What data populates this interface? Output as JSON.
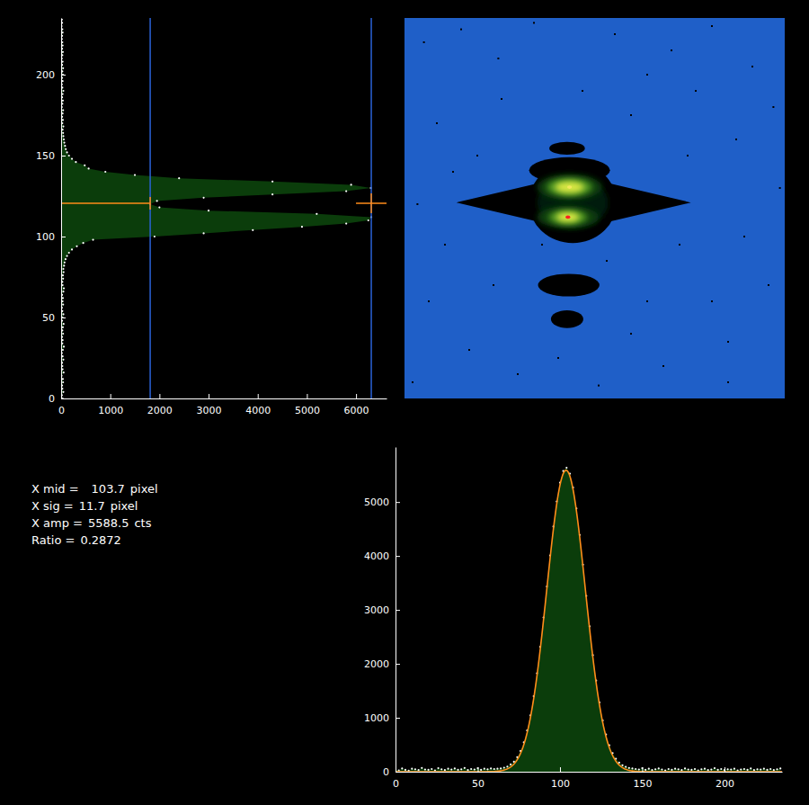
{
  "chart_data": [
    {
      "type": "area",
      "orientation": "horizontal",
      "color": "#0b3d0b",
      "marker": "dot",
      "y": [
        0,
        2,
        4,
        6,
        8,
        10,
        12,
        14,
        16,
        18,
        20,
        22,
        24,
        26,
        28,
        30,
        32,
        34,
        36,
        38,
        40,
        42,
        44,
        46,
        48,
        50,
        52,
        54,
        56,
        58,
        60,
        62,
        64,
        66,
        68,
        70,
        72,
        74,
        76,
        78,
        80,
        82,
        84,
        86,
        88,
        90,
        92,
        94,
        96,
        98,
        100,
        102,
        104,
        106,
        108,
        110,
        112,
        114,
        116,
        118,
        120,
        122,
        124,
        126,
        128,
        130,
        132,
        134,
        136,
        138,
        140,
        142,
        144,
        146,
        148,
        150,
        152,
        154,
        156,
        158,
        160,
        162,
        164,
        166,
        168,
        170,
        172,
        174,
        176,
        178,
        180,
        182,
        184,
        186,
        188,
        190,
        192,
        194,
        196,
        198,
        200,
        202,
        204,
        206,
        208,
        210,
        212,
        214,
        216,
        218,
        220,
        222,
        224,
        226,
        228,
        230,
        232,
        234
      ],
      "values": [
        30,
        15,
        45,
        25,
        20,
        40,
        35,
        10,
        50,
        30,
        25,
        20,
        45,
        30,
        15,
        35,
        55,
        25,
        30,
        20,
        40,
        25,
        35,
        50,
        20,
        30,
        45,
        25,
        15,
        40,
        30,
        35,
        20,
        45,
        55,
        30,
        25,
        40,
        35,
        50,
        45,
        60,
        70,
        90,
        120,
        160,
        220,
        320,
        450,
        650,
        1900,
        2900,
        3900,
        4900,
        5800,
        6250,
        6310,
        5200,
        3000,
        2000,
        1812,
        1950,
        2900,
        4300,
        5800,
        6300,
        5900,
        4300,
        2400,
        1500,
        900,
        560,
        480,
        300,
        220,
        160,
        120,
        95,
        80,
        65,
        55,
        45,
        40,
        30,
        45,
        25,
        35,
        20,
        30,
        40,
        15,
        25,
        35,
        20,
        30,
        45,
        25,
        15,
        30,
        20,
        35,
        25,
        40,
        20,
        30,
        15,
        25,
        35,
        20,
        30,
        25,
        15,
        20,
        30,
        25,
        10,
        20,
        15
      ],
      "xlim": [
        0,
        6620
      ],
      "xticks": [
        0,
        1000,
        2000,
        3000,
        4000,
        5000,
        6000
      ],
      "ylim": [
        0,
        235
      ],
      "yticks": [
        0,
        50,
        100,
        150,
        200
      ],
      "levels": {
        "values": [
          1812,
          6310
        ],
        "color": "#2a62d6"
      },
      "center": {
        "y": 120.5,
        "color": "#ff8c1a"
      }
    },
    {
      "type": "image",
      "tick_labels": false,
      "color": "#1f5fc8",
      "xlim": [
        0,
        235
      ],
      "ylim": [
        0,
        235
      ],
      "clim": [
        0,
        6310
      ],
      "regions": [
        {
          "shape": "ellipse",
          "x": 100.5,
          "y": 154.5,
          "rx": 11,
          "ry": 4,
          "level": 60
        },
        {
          "shape": "ellipse",
          "x": 102,
          "y": 141,
          "rx": 25,
          "ry": 8,
          "level": 60
        },
        {
          "shape": "diamond",
          "x": 104.5,
          "y": 121,
          "rx": 72.5,
          "ry": 17,
          "level": 60
        },
        {
          "shape": "ellipse",
          "x": 104,
          "y": 121,
          "rx": 27,
          "ry": 25,
          "level": 60
        },
        {
          "shape": "ellipse",
          "x": 101.5,
          "y": 70,
          "rx": 19,
          "ry": 7,
          "level": 60
        },
        {
          "shape": "ellipse",
          "x": 100.5,
          "y": 49,
          "rx": 10,
          "ry": 5.5,
          "level": 60
        },
        {
          "shape": "ellipse",
          "x": 104,
          "y": 121,
          "rx": 22,
          "ry": 16,
          "level": 350
        },
        {
          "shape": "ellipse",
          "x": 102,
          "y": 130.5,
          "rx": 20,
          "ry": 8,
          "level": 700
        },
        {
          "shape": "ellipse",
          "x": 101,
          "y": 112,
          "rx": 19,
          "ry": 7,
          "level": 700
        },
        {
          "shape": "ellipse",
          "x": 102,
          "y": 130.5,
          "rx": 14,
          "ry": 5.5,
          "level": 2500
        },
        {
          "shape": "ellipse",
          "x": 101,
          "y": 112,
          "rx": 12,
          "ry": 4.5,
          "level": 2500
        },
        {
          "shape": "ellipse",
          "x": 102,
          "y": 130.5,
          "rx": 9,
          "ry": 3.5,
          "level": 4500
        },
        {
          "shape": "ellipse",
          "x": 101,
          "y": 112,
          "rx": 7,
          "ry": 3,
          "level": 4500
        },
        {
          "shape": "ellipse",
          "x": 102,
          "y": 130.5,
          "rx": 1.5,
          "ry": 1,
          "level": 5800
        },
        {
          "shape": "ellipse",
          "x": 101,
          "y": 112,
          "rx": 1.5,
          "ry": 1,
          "level": 6310
        }
      ],
      "speckles": [
        [
          12,
          220
        ],
        [
          35,
          228
        ],
        [
          58,
          210
        ],
        [
          80,
          232
        ],
        [
          130,
          225
        ],
        [
          165,
          215
        ],
        [
          190,
          230
        ],
        [
          215,
          205
        ],
        [
          228,
          180
        ],
        [
          205,
          160
        ],
        [
          180,
          190
        ],
        [
          150,
          200
        ],
        [
          20,
          170
        ],
        [
          8,
          120
        ],
        [
          25,
          95
        ],
        [
          15,
          60
        ],
        [
          40,
          30
        ],
        [
          70,
          15
        ],
        [
          120,
          8
        ],
        [
          160,
          20
        ],
        [
          200,
          35
        ],
        [
          225,
          70
        ],
        [
          210,
          100
        ],
        [
          232,
          130
        ],
        [
          190,
          60
        ],
        [
          140,
          40
        ],
        [
          95,
          25
        ],
        [
          55,
          70
        ],
        [
          45,
          150
        ],
        [
          30,
          140
        ],
        [
          175,
          150
        ],
        [
          170,
          95
        ],
        [
          60,
          185
        ],
        [
          110,
          190
        ],
        [
          140,
          175
        ],
        [
          200,
          10
        ],
        [
          5,
          10
        ],
        [
          85,
          95
        ],
        [
          125,
          85
        ],
        [
          150,
          60
        ]
      ]
    },
    {
      "type": "area",
      "color": "#0b3d0b",
      "marker": "dot",
      "x": [
        0,
        2,
        4,
        6,
        8,
        10,
        12,
        14,
        16,
        18,
        20,
        22,
        24,
        26,
        28,
        30,
        32,
        34,
        36,
        38,
        40,
        42,
        44,
        46,
        48,
        50,
        52,
        54,
        56,
        58,
        60,
        62,
        64,
        66,
        68,
        70,
        72,
        74,
        76,
        78,
        80,
        82,
        84,
        86,
        88,
        90,
        92,
        94,
        96,
        98,
        100,
        102,
        104,
        106,
        108,
        110,
        112,
        114,
        116,
        118,
        120,
        122,
        124,
        126,
        128,
        130,
        132,
        134,
        136,
        138,
        140,
        142,
        144,
        146,
        148,
        150,
        152,
        154,
        156,
        158,
        160,
        162,
        164,
        166,
        168,
        170,
        172,
        174,
        176,
        178,
        180,
        182,
        184,
        186,
        188,
        190,
        192,
        194,
        196,
        198,
        200,
        202,
        204,
        206,
        208,
        210,
        212,
        214,
        216,
        218,
        220,
        222,
        224,
        226,
        228,
        230,
        232,
        234
      ],
      "values": [
        40,
        25,
        60,
        35,
        20,
        55,
        45,
        30,
        70,
        40,
        35,
        50,
        25,
        65,
        45,
        30,
        55,
        40,
        60,
        35,
        45,
        70,
        30,
        50,
        40,
        65,
        35,
        55,
        45,
        60,
        50,
        55,
        60,
        75,
        95,
        135,
        185,
        270,
        385,
        545,
        765,
        1045,
        1400,
        1825,
        2315,
        2860,
        3435,
        4010,
        4545,
        5010,
        5360,
        5575,
        5635,
        5525,
        5270,
        4880,
        4390,
        3840,
        3260,
        2695,
        2160,
        1690,
        1285,
        950,
        690,
        490,
        345,
        240,
        170,
        120,
        90,
        70,
        60,
        50,
        40,
        65,
        35,
        55,
        30,
        45,
        60,
        40,
        25,
        50,
        35,
        55,
        45,
        30,
        60,
        40,
        35,
        50,
        25,
        45,
        55,
        30,
        40,
        65,
        35,
        50,
        30,
        45,
        40,
        55,
        25,
        40,
        50,
        35,
        60,
        30,
        45,
        40,
        55,
        35,
        50,
        30,
        45,
        60
      ],
      "xlim": [
        0,
        235
      ],
      "xticks": [
        0,
        50,
        100,
        150,
        200
      ],
      "ylim": [
        0,
        6020
      ],
      "yticks": [
        0,
        1000,
        2000,
        3000,
        4000,
        5000
      ],
      "fit": {
        "type": "gaussian",
        "color": "#ff8c1a"
      },
      "stats": [
        {
          "label": "X mid =",
          "value": 103.7,
          "unit": "pixel"
        },
        {
          "label": "X sig =",
          "value": 11.7,
          "unit": "pixel"
        },
        {
          "label": "X amp =",
          "value": 5588.5,
          "unit": "cts"
        },
        {
          "label": "Ratio =",
          "value": 0.2872
        }
      ]
    }
  ]
}
